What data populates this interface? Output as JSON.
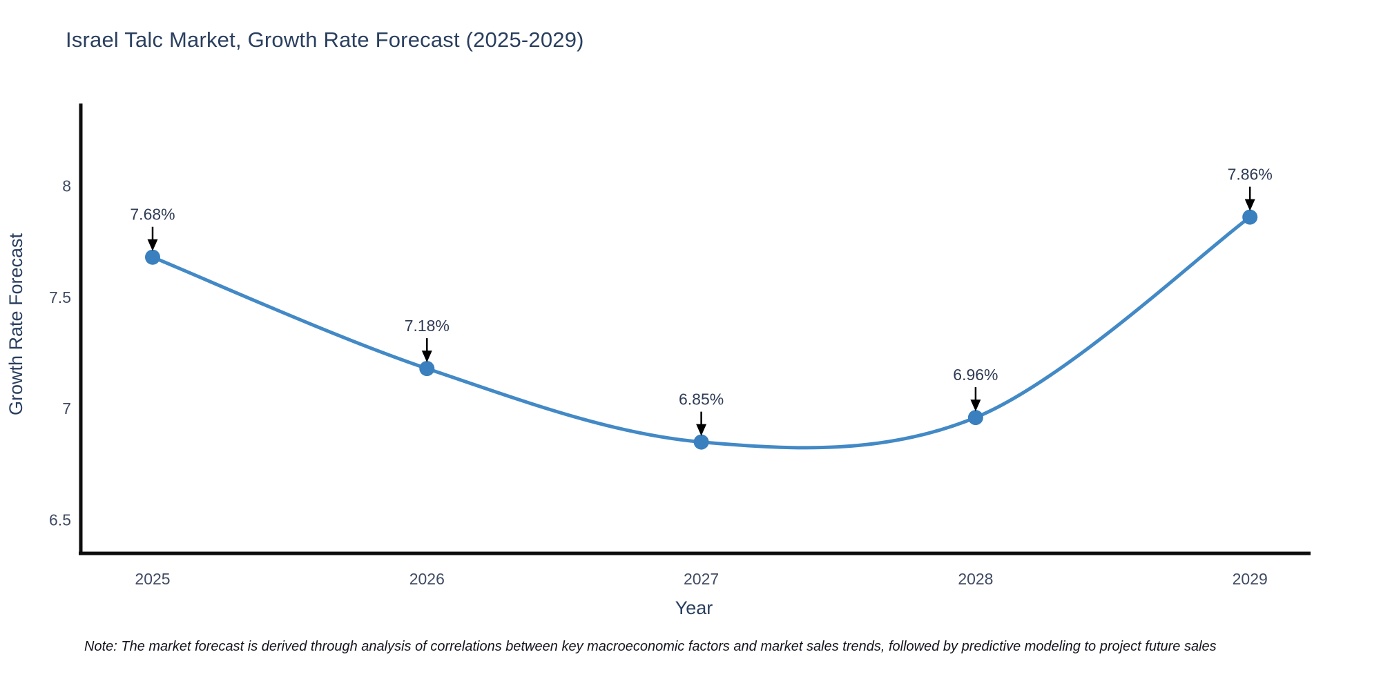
{
  "figure": {
    "note": "Note: The market forecast is derived through analysis of correlations between key macroeconomic factors and market sales trends, followed by predictive modeling to project future sales"
  },
  "chart_data": {
    "type": "line",
    "title": "Israel Talc Market, Growth Rate Forecast (2025-2029)",
    "xlabel": "Year",
    "ylabel": "Growth Rate Forecast",
    "categories": [
      "2025",
      "2026",
      "2027",
      "2028",
      "2029"
    ],
    "values": [
      7.68,
      7.18,
      6.85,
      6.96,
      7.86
    ],
    "point_labels": [
      "7.68%",
      "7.18%",
      "6.85%",
      "6.96%",
      "7.86%"
    ],
    "y_ticks": [
      {
        "value": 6.5,
        "label": "6.5"
      },
      {
        "value": 7.0,
        "label": "7"
      },
      {
        "value": 7.5,
        "label": "7.5"
      },
      {
        "value": 8.0,
        "label": "8"
      }
    ],
    "ylim": [
      6.35,
      8.37
    ],
    "xlim": [
      2024.74,
      2029.22
    ],
    "line_shape": "spline",
    "grid": false,
    "legend_position": "none",
    "annotation_style": "down-arrow-above-point",
    "colors": {
      "line": "#4289c6",
      "marker": "#3a7fbe",
      "axis": "#0d0d0d",
      "tick_text": "#3f4a63",
      "title_text": "#2a3f5f",
      "label_text": "#2f3b55",
      "arrow": "#000000",
      "note_text": "#14141e",
      "background": "#ffffff"
    }
  }
}
